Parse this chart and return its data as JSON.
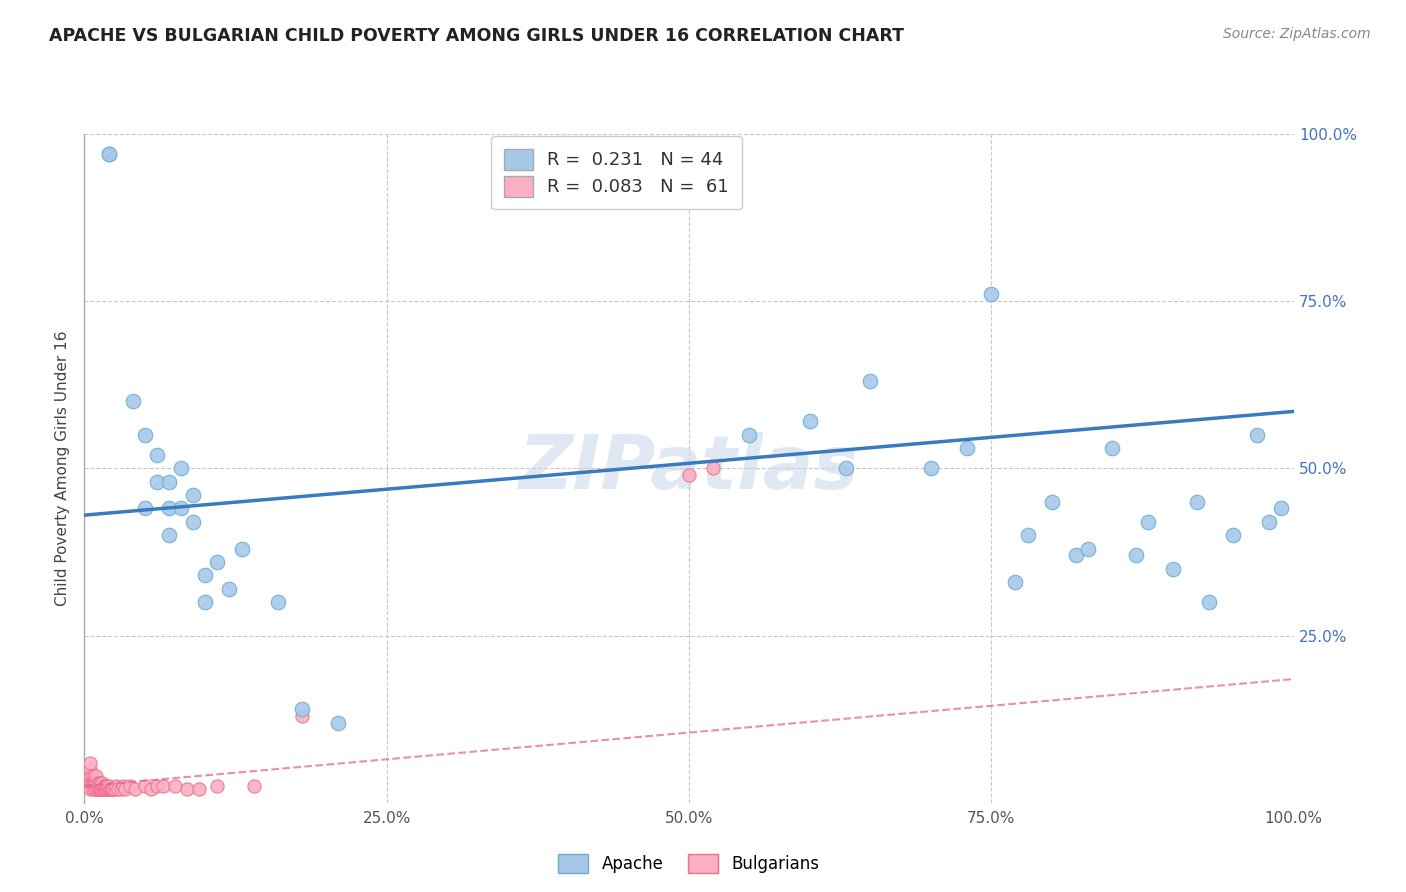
{
  "title": "APACHE VS BULGARIAN CHILD POVERTY AMONG GIRLS UNDER 16 CORRELATION CHART",
  "source": "Source: ZipAtlas.com",
  "ylabel": "Child Poverty Among Girls Under 16",
  "watermark": "ZIPatlas",
  "apache_R": 0.231,
  "apache_N": 44,
  "bulgarian_R": 0.083,
  "bulgarian_N": 61,
  "apache_color": "#a8c8e8",
  "apache_edge_color": "#6baed6",
  "apache_line_color": "#3a7abf",
  "bulgarian_color": "#faafc4",
  "bulgarian_edge_color": "#f07090",
  "bulgarian_line_color": "#e06080",
  "background_color": "#ffffff",
  "grid_color": "#c8c8c8",
  "xlim": [
    0,
    1
  ],
  "ylim": [
    0,
    1
  ],
  "xticks": [
    0,
    0.25,
    0.5,
    0.75,
    1.0
  ],
  "yticks": [
    0,
    0.25,
    0.5,
    0.75,
    1.0
  ],
  "xticklabels": [
    "0.0%",
    "25.0%",
    "50.0%",
    "75.0%",
    "100.0%"
  ],
  "yticklabels": [
    "",
    "25.0%",
    "50.0%",
    "75.0%",
    "100.0%"
  ],
  "apache_x": [
    0.02,
    0.02,
    0.04,
    0.05,
    0.05,
    0.06,
    0.06,
    0.07,
    0.07,
    0.07,
    0.08,
    0.08,
    0.09,
    0.09,
    0.1,
    0.1,
    0.11,
    0.12,
    0.13,
    0.16,
    0.18,
    0.21,
    0.55,
    0.6,
    0.63,
    0.65,
    0.7,
    0.73,
    0.75,
    0.77,
    0.78,
    0.8,
    0.82,
    0.83,
    0.85,
    0.87,
    0.88,
    0.9,
    0.92,
    0.93,
    0.95,
    0.97,
    0.98,
    0.99
  ],
  "apache_y": [
    0.97,
    0.97,
    0.6,
    0.55,
    0.44,
    0.48,
    0.52,
    0.4,
    0.44,
    0.48,
    0.5,
    0.44,
    0.46,
    0.42,
    0.34,
    0.3,
    0.36,
    0.32,
    0.38,
    0.3,
    0.14,
    0.12,
    0.55,
    0.57,
    0.5,
    0.63,
    0.5,
    0.53,
    0.76,
    0.33,
    0.4,
    0.45,
    0.37,
    0.38,
    0.53,
    0.37,
    0.42,
    0.35,
    0.45,
    0.3,
    0.4,
    0.55,
    0.42,
    0.44
  ],
  "bulgarian_x": [
    0.005,
    0.005,
    0.005,
    0.005,
    0.005,
    0.006,
    0.006,
    0.007,
    0.007,
    0.008,
    0.008,
    0.009,
    0.009,
    0.01,
    0.01,
    0.01,
    0.011,
    0.011,
    0.012,
    0.012,
    0.013,
    0.013,
    0.014,
    0.014,
    0.015,
    0.015,
    0.015,
    0.016,
    0.016,
    0.017,
    0.017,
    0.018,
    0.018,
    0.019,
    0.019,
    0.02,
    0.02,
    0.021,
    0.022,
    0.023,
    0.024,
    0.025,
    0.026,
    0.028,
    0.03,
    0.032,
    0.034,
    0.038,
    0.042,
    0.05,
    0.055,
    0.06,
    0.065,
    0.075,
    0.085,
    0.095,
    0.11,
    0.14,
    0.18,
    0.5,
    0.52
  ],
  "bulgarian_y": [
    0.02,
    0.03,
    0.04,
    0.05,
    0.06,
    0.03,
    0.04,
    0.02,
    0.03,
    0.03,
    0.04,
    0.02,
    0.03,
    0.02,
    0.03,
    0.04,
    0.02,
    0.03,
    0.02,
    0.03,
    0.02,
    0.025,
    0.02,
    0.03,
    0.02,
    0.025,
    0.03,
    0.02,
    0.025,
    0.02,
    0.025,
    0.02,
    0.025,
    0.02,
    0.025,
    0.02,
    0.025,
    0.02,
    0.02,
    0.02,
    0.02,
    0.02,
    0.025,
    0.02,
    0.02,
    0.025,
    0.02,
    0.025,
    0.02,
    0.025,
    0.02,
    0.025,
    0.025,
    0.025,
    0.02,
    0.02,
    0.025,
    0.025,
    0.13,
    0.49,
    0.5
  ],
  "apache_trendline_x": [
    0.0,
    1.0
  ],
  "apache_trendline_y": [
    0.43,
    0.585
  ],
  "bulgarian_trendline_x": [
    0.0,
    1.0
  ],
  "bulgarian_trendline_y": [
    0.025,
    0.185
  ]
}
